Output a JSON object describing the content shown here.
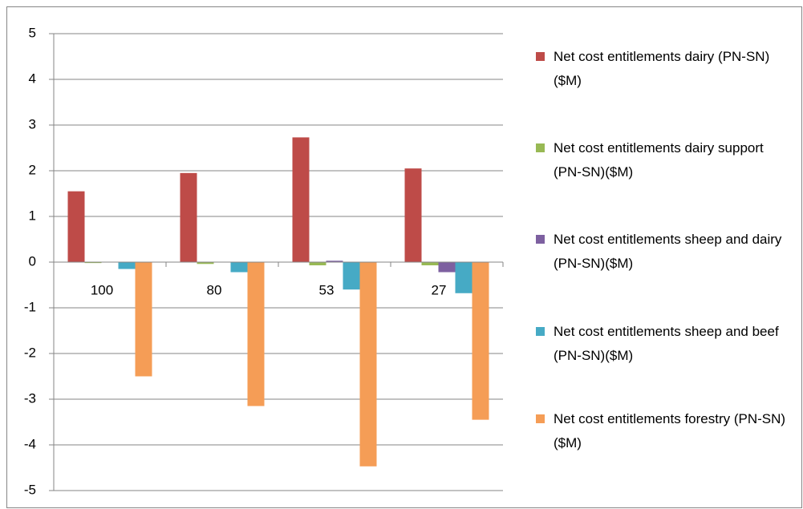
{
  "chart_data": {
    "type": "bar",
    "categories": [
      "100",
      "80",
      "53",
      "27"
    ],
    "series": [
      {
        "name": "Net cost entitlements dairy (PN-SN) ($M)",
        "color": "#be4b48",
        "values": [
          1.55,
          1.95,
          2.73,
          2.05
        ]
      },
      {
        "name": "Net cost entitlements dairy support (PN-SN)($M)",
        "color": "#98b954",
        "values": [
          -0.02,
          -0.04,
          -0.07,
          -0.07
        ]
      },
      {
        "name": "Net cost entitlements sheep and dairy (PN-SN)($M)",
        "color": "#7d60a0",
        "values": [
          0,
          0,
          0.03,
          -0.22
        ]
      },
      {
        "name": "Net cost entitlements sheep and beef (PN-SN)($M)",
        "color": "#46aac5",
        "values": [
          -0.15,
          -0.22,
          -0.6,
          -0.68
        ]
      },
      {
        "name": "Net cost entitlements forestry (PN-SN)($M)",
        "color": "#f59d56",
        "values": [
          -2.5,
          -3.15,
          -4.47,
          -3.45
        ]
      }
    ],
    "ylim": [
      -5,
      5
    ],
    "yticks": [
      -5,
      -4,
      -3,
      -2,
      -1,
      0,
      1,
      2,
      3,
      4,
      5
    ],
    "grid": true,
    "legend": "right"
  }
}
